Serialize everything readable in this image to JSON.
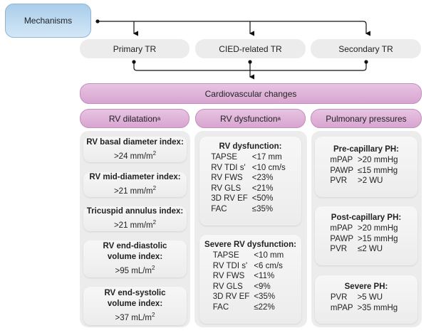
{
  "mechanisms": "Mechanisms",
  "tr_types": [
    "Primary TR",
    "CIED-related TR",
    "Secondary TR"
  ],
  "cardiovascular": "Cardiovascular changes",
  "headers": {
    "dilatation": "RV dilatation",
    "dysfunction": "RV dysfunction",
    "pulmonary": "Pulmonary pressures",
    "sup": "a"
  },
  "dilatation": [
    {
      "title": "RV basal diameter index:",
      "value": ">24 mm/m",
      "sup": "2"
    },
    {
      "title": "RV mid-diameter index:",
      "value": ">21 mm/m",
      "sup": "2"
    },
    {
      "title": "Tricuspid annulus index:",
      "value": ">21 mm/m",
      "sup": "2"
    },
    {
      "title": "RV end-diastolic volume index:",
      "value": ">95 mL/m",
      "sup": "2"
    },
    {
      "title": "RV end-systolic volume index:",
      "value": ">37 mL/m",
      "sup": "2"
    }
  ],
  "dysfunction": {
    "title": "RV dysfunction:",
    "rows": [
      [
        "TAPSE",
        "<17 mm"
      ],
      [
        "RV TDI s'",
        "<10 cm/s"
      ],
      [
        "RV FWS",
        "<23%"
      ],
      [
        "RV GLS",
        "<21%"
      ],
      [
        "3D RV EF",
        "<50%"
      ],
      [
        "FAC",
        "≤35%"
      ]
    ]
  },
  "severe_dysfunction": {
    "title": "Severe RV dysfunction:",
    "rows": [
      [
        "TAPSE",
        "<10 mm"
      ],
      [
        "RV TDI s'",
        "<6 cm/s"
      ],
      [
        "RV FWS",
        "<11%"
      ],
      [
        "RV GLS",
        "<9%"
      ],
      [
        "3D RV EF",
        "<35%"
      ],
      [
        "FAC",
        "≤22%"
      ]
    ]
  },
  "pulmonary": [
    {
      "title": "Pre-capillary PH:",
      "rows": [
        [
          "mPAP",
          ">20 mmHg"
        ],
        [
          "PAWP",
          "≤15 mmHg"
        ],
        [
          "PVR",
          ">2 WU"
        ]
      ]
    },
    {
      "title": "Post-capillary PH:",
      "rows": [
        [
          "mPAP",
          ">20 mmHg"
        ],
        [
          "PAWP",
          ">15 mmHg"
        ],
        [
          "PVR",
          "≤2 WU"
        ]
      ]
    },
    {
      "title": "Severe PH:",
      "rows": [
        [
          "PVR",
          ">5 WU"
        ],
        [
          "mPAP",
          ">35 mmHg"
        ]
      ]
    }
  ]
}
